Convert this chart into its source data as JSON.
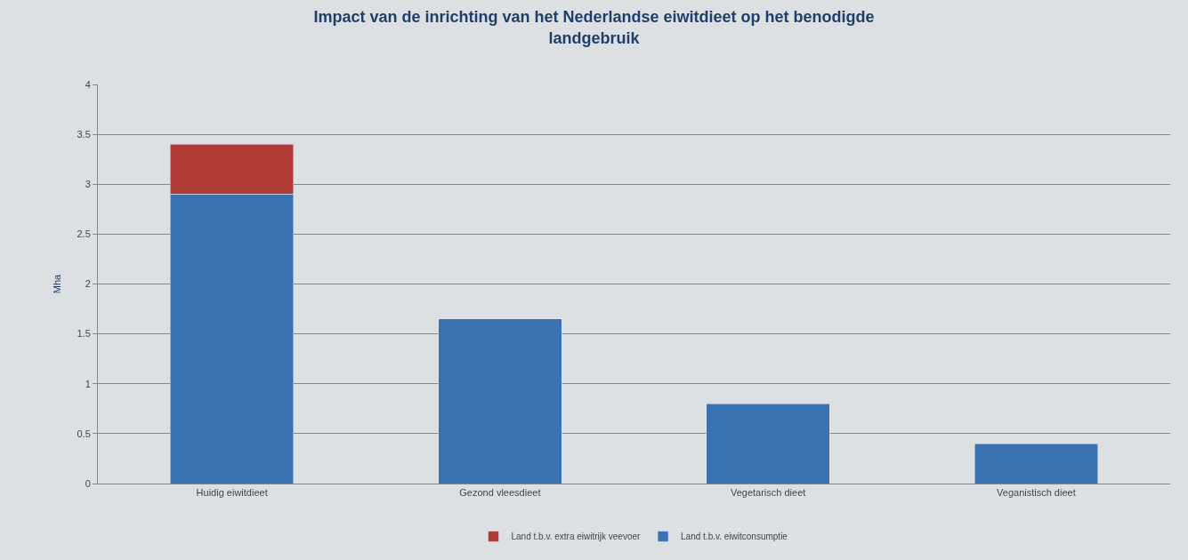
{
  "chart_data": {
    "type": "bar",
    "title": "Impact van de inrichting van het Nederlandse eiwitdieet op het benodigde landgebruik",
    "ylabel": "Mha",
    "categories": [
      "Huidig eiwitdieet",
      "Gezond vleesdieet",
      "Vegetarisch dieet",
      "Veganistisch dieet"
    ],
    "stacked": true,
    "series": [
      {
        "name": "Land t.b.v. eiwitconsumptie",
        "color": "#3a72b2",
        "values": [
          2.9,
          1.65,
          0.8,
          0.4
        ]
      },
      {
        "name": "Land t.b.v. extra eiwitrijk veevoer",
        "color": "#b03a35",
        "values": [
          0.5,
          null,
          null,
          null
        ]
      }
    ],
    "ylim": [
      0,
      4
    ],
    "yticks": [
      0,
      0.5,
      1,
      1.5,
      2,
      2.5,
      3,
      3.5,
      4
    ],
    "grid": "y",
    "legend": "bottom"
  }
}
